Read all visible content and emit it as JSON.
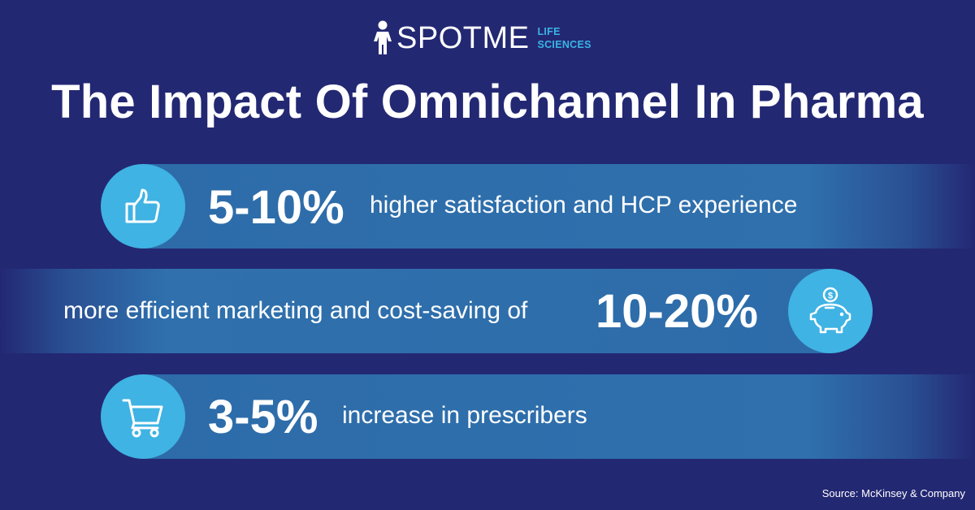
{
  "logo": {
    "wordmark": "SPOTME",
    "sub_line1": "LIFE",
    "sub_line2": "SCIENCES",
    "accent_color": "#3bb4e5"
  },
  "title": "The Impact Of Omnichannel In Pharma",
  "stats": [
    {
      "icon": "thumbs-up-icon",
      "value": "5-10%",
      "description": "higher satisfaction and HCP experience"
    },
    {
      "icon": "piggy-bank-icon",
      "value": "10-20%",
      "description": "more efficient marketing and cost-saving of"
    },
    {
      "icon": "shopping-cart-icon",
      "value": "3-5%",
      "description": "increase in prescribers"
    }
  ],
  "source": "Source: McKinsey & Company",
  "colors": {
    "background": "#232873",
    "band": "#2f70ad",
    "icon_circle": "#3fb3e3",
    "text": "#ffffff"
  }
}
